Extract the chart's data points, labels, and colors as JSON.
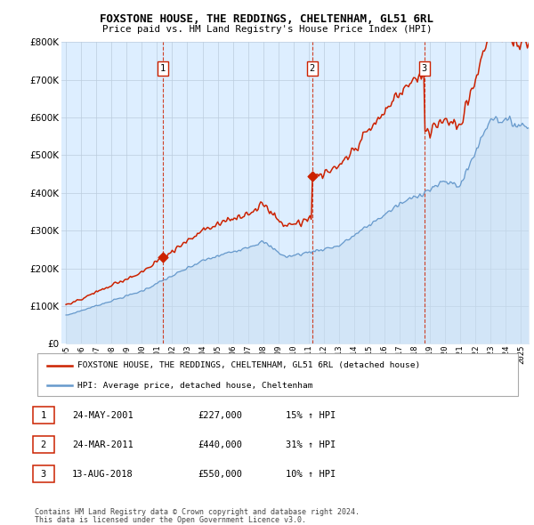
{
  "title": "FOXSTONE HOUSE, THE REDDINGS, CHELTENHAM, GL51 6RL",
  "subtitle": "Price paid vs. HM Land Registry's House Price Index (HPI)",
  "legend_line1": "FOXSTONE HOUSE, THE REDDINGS, CHELTENHAM, GL51 6RL (detached house)",
  "legend_line2": "HPI: Average price, detached house, Cheltenham",
  "sale1_date": "24-MAY-2001",
  "sale1_price": "£227,000",
  "sale1_hpi": "15% ↑ HPI",
  "sale1_year": 2001.37,
  "sale1_value": 227000,
  "sale2_date": "24-MAR-2011",
  "sale2_price": "£440,000",
  "sale2_hpi": "31% ↑ HPI",
  "sale2_year": 2011.22,
  "sale2_value": 440000,
  "sale3_date": "13-AUG-2018",
  "sale3_price": "£550,000",
  "sale3_hpi": "10% ↑ HPI",
  "sale3_year": 2018.62,
  "sale3_value": 550000,
  "footer1": "Contains HM Land Registry data © Crown copyright and database right 2024.",
  "footer2": "This data is licensed under the Open Government Licence v3.0.",
  "red_color": "#cc2200",
  "blue_color": "#6699cc",
  "blue_fill_color": "#ddeeff",
  "background_color": "#ffffff",
  "chart_bg_color": "#ddeeff",
  "grid_color": "#bbccdd",
  "ylim_min": 0,
  "ylim_max": 800000,
  "xlim_min": 1994.7,
  "xlim_max": 2025.5
}
